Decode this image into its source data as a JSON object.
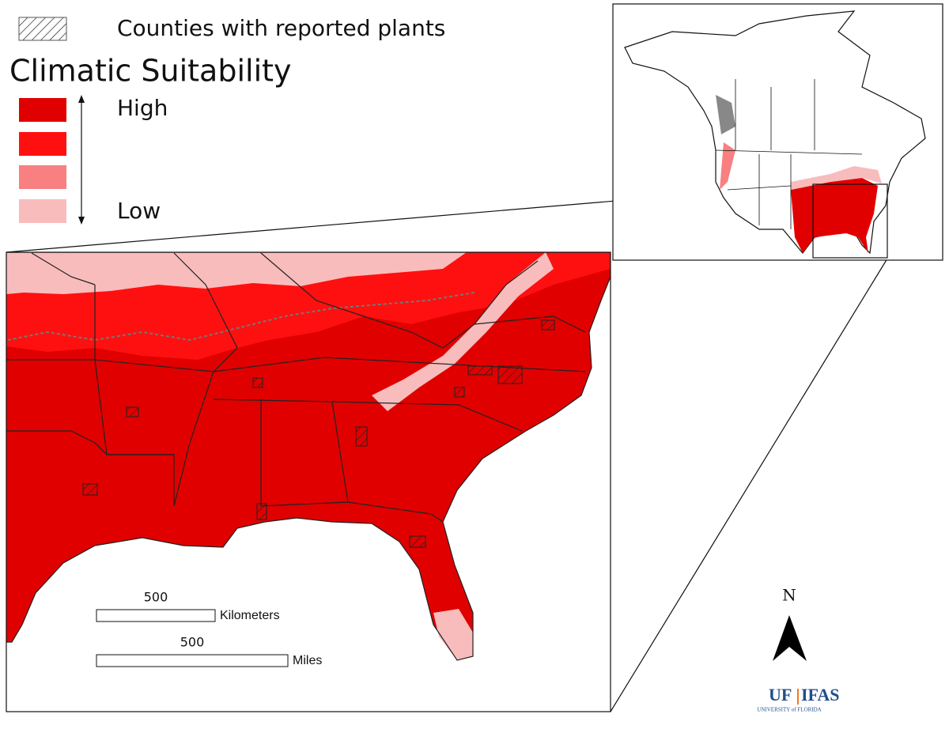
{
  "legend": {
    "hatch_label": "Counties with reported plants",
    "title": "Climatic Suitability",
    "high": "High",
    "low": "Low"
  },
  "scale_bars": [
    {
      "value": 500,
      "unit": "Kilometers"
    },
    {
      "value": 500,
      "unit": "Miles"
    }
  ],
  "north_label": "N",
  "logo": {
    "uf": "UF",
    "ifas": "IFAS",
    "university": "UNIVERSITY of FLORIDA"
  }
}
